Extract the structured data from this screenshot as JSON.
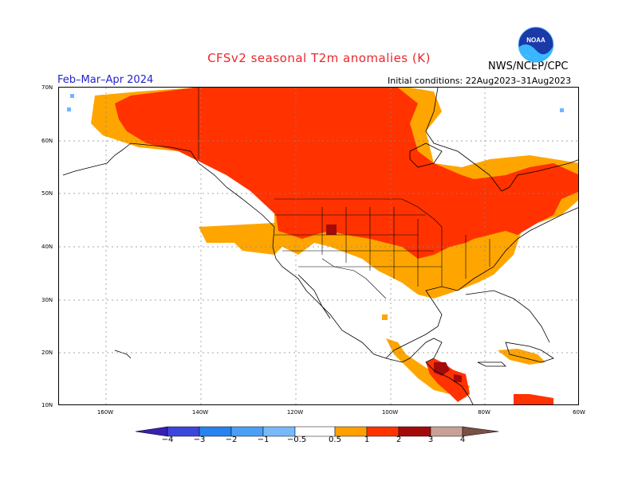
{
  "header": {
    "title": "CFSv2  seasonal  T2m  anomalies  (K)",
    "period": "Feb–Mar–Apr 2024",
    "initial_conditions": "Initial conditions:  22Aug2023–31Aug2023",
    "agency": "NWS/NCEP/CPC",
    "logo_text": "NOAA"
  },
  "map": {
    "lat_labels": [
      "70N",
      "60N",
      "50N",
      "40N",
      "30N",
      "20N",
      "10N"
    ],
    "lon_labels": [
      "160W",
      "140W",
      "120W",
      "100W",
      "80W",
      "60W"
    ],
    "colors": {
      "land_outline": "#000000",
      "grid": "#888888",
      "anom_05_1": "#ffa500",
      "anom_1_2": "#ff3200",
      "anom_2_3": "#a50a0a",
      "anom_neg": "#6fb6ff"
    }
  },
  "colorbar": {
    "labels": [
      "−4",
      "−3",
      "−2",
      "−1",
      "−0.5",
      "0.5",
      "1",
      "2",
      "3",
      "4"
    ],
    "colors": [
      "#3a1eb4",
      "#3c46dc",
      "#2882f0",
      "#4ba0f5",
      "#78b9fa",
      "#ffffff",
      "#ffa000",
      "#ff3200",
      "#a50a0a",
      "#c8a096",
      "#785046"
    ]
  }
}
